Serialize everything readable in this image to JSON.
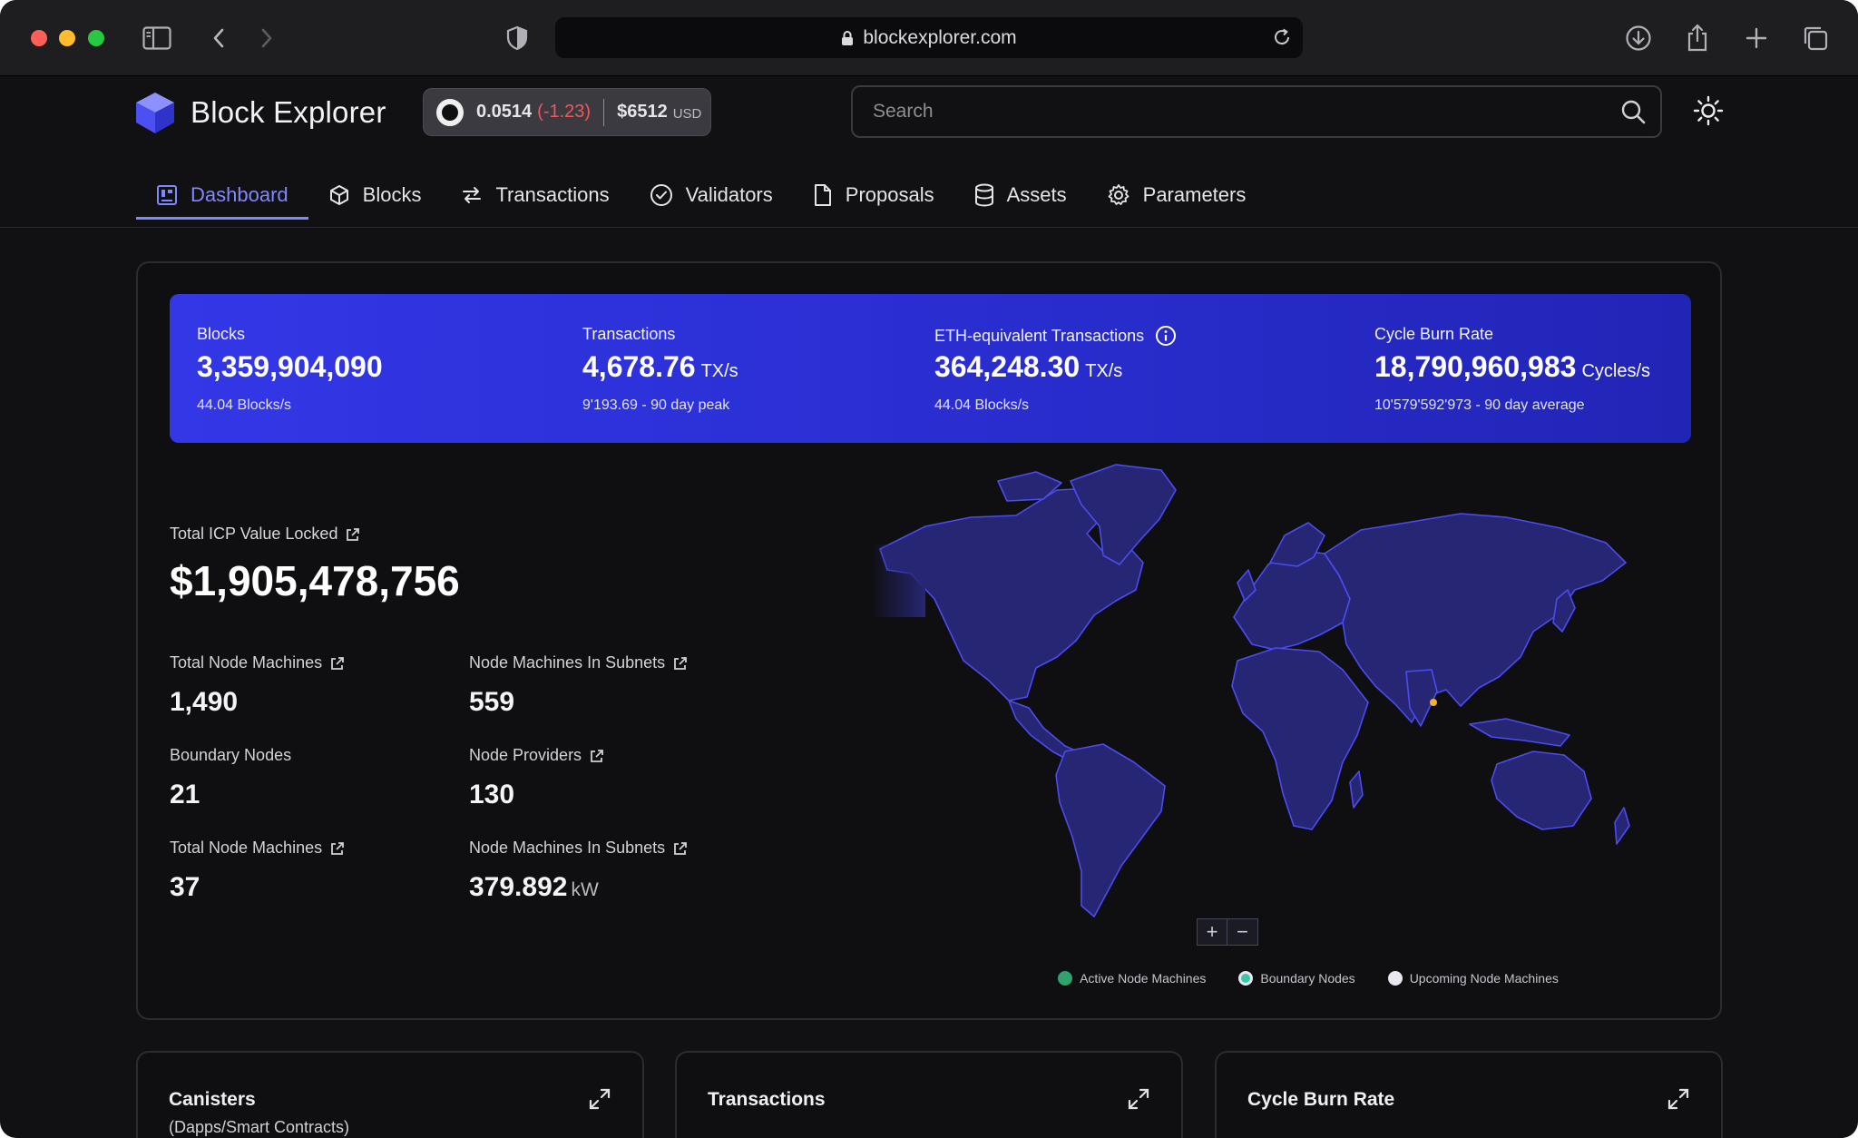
{
  "browser": {
    "url": "blockexplorer.com"
  },
  "header": {
    "title": "Block Explorer",
    "price": {
      "value": "0.0514",
      "change": "(-1.23)",
      "usd_value": "$6512",
      "usd_label": "USD"
    },
    "search_placeholder": "Search"
  },
  "nav": {
    "items": [
      {
        "label": "Dashboard",
        "icon": "dashboard-icon",
        "active": true
      },
      {
        "label": "Blocks",
        "icon": "cube-icon"
      },
      {
        "label": "Transactions",
        "icon": "arrows-icon"
      },
      {
        "label": "Validators",
        "icon": "check-circle-icon"
      },
      {
        "label": "Proposals",
        "icon": "document-icon"
      },
      {
        "label": "Assets",
        "icon": "database-icon"
      },
      {
        "label": "Parameters",
        "icon": "gear-icon"
      }
    ]
  },
  "stats": [
    {
      "label": "Blocks",
      "value": "3,359,904,090",
      "unit": "",
      "sub": "44.04 Blocks/s"
    },
    {
      "label": "Transactions",
      "value": "4,678.76",
      "unit": "TX/s",
      "sub": "9'193.69 - 90 day peak"
    },
    {
      "label": "ETH-equivalent Transactions",
      "value": "364,248.30",
      "unit": "TX/s",
      "sub": "44.04 Blocks/s"
    },
    {
      "label": "Cycle Burn Rate",
      "value": "18,790,960,983",
      "unit": "Cycles/s",
      "sub": "10'579'592'973 - 90 day average"
    }
  ],
  "tvl": {
    "label": "Total ICP Value Locked",
    "value": "$1,905,478,756"
  },
  "metrics": [
    {
      "label": "Total Node  Machines",
      "value": "1,490",
      "unit": "",
      "link": true
    },
    {
      "label": "Node Machines In Subnets",
      "value": "559",
      "unit": "",
      "link": true
    },
    {
      "label": "Boundary Nodes",
      "value": "21",
      "unit": "",
      "link": false
    },
    {
      "label": "Node Providers",
      "value": "130",
      "unit": "",
      "link": true
    },
    {
      "label": "Total Node  Machines",
      "value": "37",
      "unit": "",
      "link": true
    },
    {
      "label": "Node Machines In Subnets",
      "value": "379.892",
      "unit": "kW",
      "link": true
    }
  ],
  "map": {
    "zoom_in": "+",
    "zoom_out": "−",
    "legend": [
      {
        "label": "Active Node Machines",
        "color": "#2fa36b"
      },
      {
        "label": "Boundary Nodes",
        "color": "#39c9a6"
      },
      {
        "label": "Upcoming Node Machines",
        "color": "#e8e8ee"
      }
    ],
    "land_color": "#262674",
    "border_color": "#4a4cf0"
  },
  "bottom_cards": [
    {
      "title": "Canisters",
      "subtitle": "(Dapps/Smart Contracts)"
    },
    {
      "title": "Transactions",
      "subtitle": ""
    },
    {
      "title": "Cycle Burn Rate",
      "subtitle": ""
    }
  ]
}
